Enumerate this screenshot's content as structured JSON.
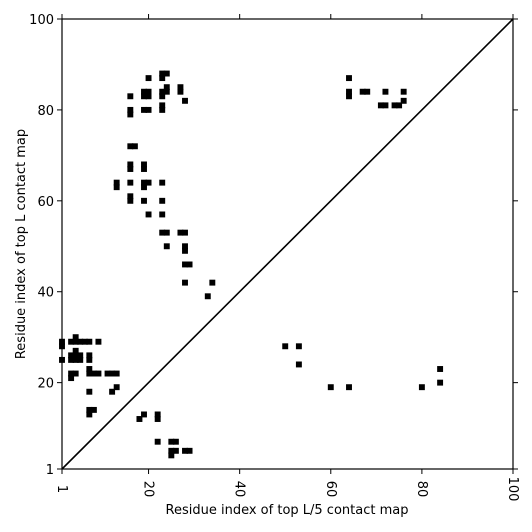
{
  "chart_data": {
    "type": "scatter",
    "subtype": "contact-map",
    "xlabel": "Residue index of top L/5 contact map",
    "ylabel": "Residue index of top L contact map",
    "xlim": [
      1,
      100
    ],
    "ylim": [
      1,
      100
    ],
    "x_ticks": [
      1,
      20,
      40,
      60,
      80,
      100
    ],
    "x_tick_labels": [
      "1",
      "20",
      "40",
      "60",
      "80",
      "100"
    ],
    "y_ticks": [
      1,
      20,
      40,
      60,
      80,
      100
    ],
    "y_tick_labels": [
      "1",
      "20",
      "40",
      "60",
      "80",
      "100"
    ],
    "x_tick_label_rotation": "vertical",
    "grid": false,
    "diagonal": {
      "from": [
        1,
        1
      ],
      "to": [
        100,
        100
      ],
      "color": "#000000"
    },
    "marker": {
      "shape": "square",
      "color": "#000000"
    },
    "series": [
      {
        "region": "upper-left",
        "points": [
          [
            1,
            28
          ],
          [
            1,
            29
          ],
          [
            1,
            25
          ],
          [
            3,
            25
          ],
          [
            3,
            26
          ],
          [
            4,
            25
          ],
          [
            4,
            26
          ],
          [
            5,
            25
          ],
          [
            5,
            26
          ],
          [
            3,
            29
          ],
          [
            4,
            29
          ],
          [
            4,
            30
          ],
          [
            5,
            29
          ],
          [
            4,
            27
          ],
          [
            6,
            29
          ],
          [
            7,
            29
          ],
          [
            9,
            29
          ],
          [
            7,
            25
          ],
          [
            7,
            26
          ],
          [
            3,
            21
          ],
          [
            3,
            22
          ],
          [
            4,
            22
          ],
          [
            7,
            22
          ],
          [
            7,
            23
          ],
          [
            8,
            22
          ],
          [
            9,
            22
          ],
          [
            11,
            22
          ],
          [
            12,
            22
          ],
          [
            13,
            22
          ],
          [
            13,
            19
          ],
          [
            12,
            18
          ],
          [
            7,
            18
          ],
          [
            7,
            13
          ],
          [
            7,
            14
          ],
          [
            8,
            14
          ],
          [
            18,
            12
          ],
          [
            19,
            13
          ],
          [
            22,
            12
          ],
          [
            22,
            13
          ],
          [
            22,
            7
          ],
          [
            25,
            7
          ],
          [
            26,
            7
          ],
          [
            25,
            5
          ],
          [
            26,
            5
          ],
          [
            25,
            4
          ],
          [
            28,
            5
          ],
          [
            29,
            5
          ],
          [
            16,
            72
          ],
          [
            17,
            72
          ],
          [
            16,
            83
          ],
          [
            16,
            80
          ],
          [
            16,
            79
          ],
          [
            19,
            84
          ],
          [
            19,
            83
          ],
          [
            20,
            84
          ],
          [
            20,
            83
          ],
          [
            20,
            87
          ],
          [
            19,
            80
          ],
          [
            20,
            80
          ],
          [
            23,
            88
          ],
          [
            23,
            87
          ],
          [
            24,
            88
          ],
          [
            23,
            84
          ],
          [
            23,
            83
          ],
          [
            24,
            85
          ],
          [
            24,
            84
          ],
          [
            23,
            81
          ],
          [
            23,
            80
          ],
          [
            27,
            85
          ],
          [
            27,
            84
          ],
          [
            28,
            82
          ],
          [
            13,
            64
          ],
          [
            13,
            63
          ],
          [
            16,
            64
          ],
          [
            16,
            68
          ],
          [
            16,
            67
          ],
          [
            16,
            61
          ],
          [
            16,
            60
          ],
          [
            19,
            68
          ],
          [
            19,
            67
          ],
          [
            19,
            64
          ],
          [
            19,
            63
          ],
          [
            20,
            64
          ],
          [
            19,
            60
          ],
          [
            20,
            57
          ],
          [
            23,
            64
          ],
          [
            23,
            60
          ],
          [
            23,
            57
          ],
          [
            23,
            53
          ],
          [
            24,
            53
          ],
          [
            24,
            50
          ],
          [
            27,
            53
          ],
          [
            28,
            53
          ],
          [
            28,
            50
          ],
          [
            28,
            49
          ],
          [
            28,
            46
          ],
          [
            29,
            46
          ],
          [
            28,
            42
          ],
          [
            33,
            39
          ],
          [
            34,
            42
          ]
        ]
      },
      {
        "region": "lower-right",
        "points": [
          [
            64,
            87
          ],
          [
            64,
            84
          ],
          [
            64,
            83
          ],
          [
            67,
            84
          ],
          [
            68,
            84
          ],
          [
            72,
            84
          ],
          [
            76,
            84
          ],
          [
            71,
            81
          ],
          [
            72,
            81
          ],
          [
            74,
            81
          ],
          [
            75,
            81
          ],
          [
            76,
            82
          ],
          [
            50,
            28
          ],
          [
            53,
            28
          ],
          [
            53,
            24
          ],
          [
            60,
            19
          ],
          [
            64,
            19
          ],
          [
            80,
            19
          ],
          [
            84,
            23
          ],
          [
            84,
            20
          ]
        ]
      }
    ]
  }
}
